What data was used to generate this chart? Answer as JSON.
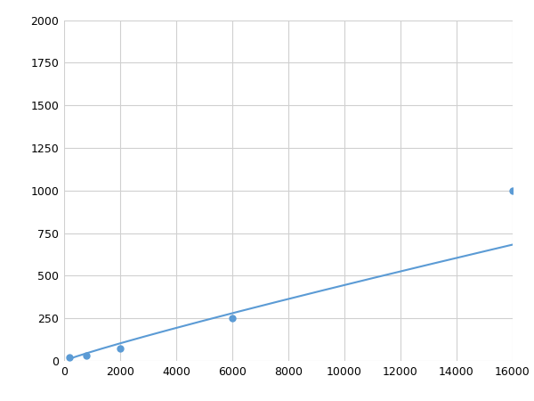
{
  "x_data": [
    200,
    800,
    2000,
    6000,
    16000
  ],
  "y_data": [
    20,
    30,
    75,
    250,
    1000
  ],
  "line_color": "#5b9bd5",
  "marker_color": "#5b9bd5",
  "marker_size": 5,
  "line_width": 1.5,
  "xlim": [
    0,
    16000
  ],
  "ylim": [
    0,
    2000
  ],
  "xticks": [
    0,
    2000,
    4000,
    6000,
    8000,
    10000,
    12000,
    14000,
    16000
  ],
  "yticks": [
    0,
    250,
    500,
    750,
    1000,
    1250,
    1500,
    1750,
    2000
  ],
  "grid_color": "#d0d0d0",
  "background_color": "#ffffff",
  "figure_bg": "#ffffff"
}
